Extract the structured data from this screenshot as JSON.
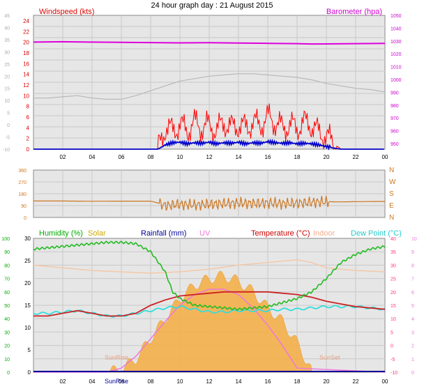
{
  "title": "24 hour graph day : 21 August 2015",
  "colors": {
    "plot_bg": "#e6e6e6",
    "grid": "#c8c8c8",
    "wind_gust": "#ff0000",
    "wind_avg": "#0000cc",
    "barometer": "#dd00dd",
    "temp_dim": "#b8b8b8",
    "wind_dir": "#cc7722",
    "humidity": "#22bb22",
    "solar": "#f5b04a",
    "rainfall": "#000099",
    "uv": "#ee77dd",
    "temperature": "#cc2222",
    "indoor": "#f5c8a8",
    "dewpoint": "#33dddd",
    "temp_axis": "#ff3377",
    "left_green_axis": "#00aa00"
  },
  "chart_data": [
    {
      "type": "line",
      "name": "wind-barometer",
      "labels": {
        "left": "Windspeed (kts)",
        "right": "Barometer (hpa)"
      },
      "x_ticks": [
        "02",
        "04",
        "06",
        "08",
        "10",
        "12",
        "14",
        "16",
        "18",
        "20",
        "22",
        "00"
      ],
      "y_left_ticks": [
        "24",
        "22",
        "20",
        "18",
        "16",
        "14",
        "12",
        "10",
        "8",
        "6",
        "4",
        "2",
        "0"
      ],
      "y_left_ticks_faded": [
        "45",
        "40",
        "35",
        "30",
        "25",
        "20",
        "15",
        "10",
        "5",
        "0",
        "-5",
        "-10"
      ],
      "y_right_ticks": [
        "1050",
        "1040",
        "1030",
        "1020",
        "1010",
        "1000",
        "990",
        "980",
        "970",
        "960",
        "950"
      ],
      "ylim_left": [
        0,
        25
      ],
      "ylim_right": [
        945,
        1050
      ],
      "series": [
        {
          "name": "barometer",
          "x": [
            0,
            2,
            4,
            6,
            8,
            10,
            12,
            14,
            16,
            18,
            19,
            20,
            22,
            24
          ],
          "y": [
            1029,
            1029.3,
            1029,
            1028.8,
            1028.6,
            1028.4,
            1028.5,
            1028.3,
            1028,
            1027.8,
            1027.5,
            1027.6,
            1027.8,
            1028
          ]
        },
        {
          "name": "temperature-faded",
          "x": [
            0,
            1,
            2,
            3,
            4,
            5,
            6,
            7,
            8,
            9,
            10,
            11,
            12,
            13,
            14,
            15,
            16,
            17,
            18,
            19,
            20,
            21,
            22,
            23,
            24
          ],
          "y": [
            11,
            11,
            11.5,
            12,
            11,
            10.5,
            10.5,
            12,
            14,
            16,
            18,
            19,
            20,
            20.5,
            21,
            21,
            20.5,
            20,
            19.5,
            18.5,
            17,
            16,
            15,
            14.5,
            13.5
          ]
        },
        {
          "name": "gust",
          "x": [
            0,
            8.5,
            9,
            9.5,
            10,
            10.5,
            11,
            11.5,
            12,
            12.5,
            13,
            13.5,
            14,
            14.5,
            15,
            15.5,
            16,
            16.5,
            17,
            17.5,
            18,
            18.5,
            19,
            19.5,
            20,
            20.5,
            21,
            22,
            24
          ],
          "y": [
            0,
            0,
            4,
            3.5,
            4.5,
            3.5,
            5,
            4,
            4.5,
            3.5,
            5,
            4,
            4.5,
            4,
            5,
            4.5,
            6,
            5,
            4,
            4.5,
            4,
            5,
            4.5,
            3,
            2.5,
            1,
            0,
            0,
            0
          ]
        },
        {
          "name": "average",
          "x": [
            0,
            8.5,
            9,
            9.5,
            10,
            10.5,
            11,
            11.5,
            12,
            12.5,
            13,
            13.5,
            14,
            14.5,
            15,
            15.5,
            16,
            16.5,
            17,
            17.5,
            18,
            18.5,
            19,
            19.5,
            20,
            20.5,
            21,
            22,
            24
          ],
          "y": [
            0,
            0,
            0.8,
            1.2,
            1.3,
            1,
            1.2,
            1.1,
            1.3,
            1,
            1.2,
            1.1,
            1.3,
            1,
            1.2,
            1.1,
            1.4,
            1.2,
            1.1,
            1.2,
            1,
            1.1,
            1,
            0.8,
            0.5,
            0.2,
            0,
            0,
            0
          ]
        }
      ]
    },
    {
      "type": "line",
      "name": "wind-direction",
      "y_left_ticks": [
        "360",
        "270",
        "180",
        "90",
        "0"
      ],
      "y_right_ticks": [
        "N",
        "W",
        "S",
        "E",
        "N"
      ],
      "ylim": [
        0,
        360
      ],
      "series": [
        {
          "name": "direction",
          "x": [
            0,
            2,
            4,
            6,
            8,
            8.5,
            9,
            10,
            11,
            12,
            13,
            14,
            15,
            16,
            17,
            18,
            19,
            20,
            21,
            22,
            24
          ],
          "y": [
            125,
            125,
            123,
            124,
            124,
            110,
            90,
            100,
            95,
            100,
            105,
            110,
            105,
            110,
            105,
            108,
            115,
            120,
            118,
            120,
            122
          ]
        }
      ]
    },
    {
      "type": "line",
      "name": "temperature-humidity",
      "labels": {
        "humidity": "Humidity (%)",
        "solar": "Solar",
        "rainfall": "Rainfall (mm)",
        "uv": "UV",
        "temperature": "Temperature (°C)",
        "indoor": "Indoor",
        "dewpoint": "Dew Point (°C)",
        "sunrise": "SunRise",
        "sunset": "SunSet"
      },
      "x_ticks": [
        "02",
        "04",
        "06",
        "08",
        "10",
        "12",
        "14",
        "16",
        "18",
        "20",
        "22",
        "00"
      ],
      "y_left_ticks": [
        "100",
        "90",
        "80",
        "70",
        "60",
        "50",
        "40",
        "30",
        "20",
        "10",
        "0"
      ],
      "y_second_ticks": [
        "30",
        "25",
        "20",
        "15",
        "10",
        "5",
        "0"
      ],
      "y_temp_ticks": [
        "40",
        "35",
        "30",
        "25",
        "20",
        "15",
        "10",
        "5",
        "0",
        "-5",
        "-10"
      ],
      "y_uv_ticks": [
        "10",
        "9",
        "8",
        "7",
        "6",
        "5",
        "4",
        "3",
        "2",
        "1",
        "0"
      ],
      "ylim_temp": [
        -10,
        40
      ],
      "series": [
        {
          "name": "humidity",
          "x": [
            0,
            1,
            2,
            3,
            4,
            5,
            6,
            7,
            8,
            9,
            9.5,
            10,
            11,
            12,
            13,
            14,
            15,
            16,
            17,
            18,
            19,
            20,
            21,
            22,
            23,
            24
          ],
          "y": [
            92,
            93,
            94,
            95,
            96,
            97,
            97,
            96,
            90,
            75,
            60,
            55,
            50,
            49,
            48,
            47,
            48,
            49,
            52,
            55,
            60,
            70,
            82,
            88,
            92,
            94
          ]
        },
        {
          "name": "temperature",
          "x": [
            0,
            1,
            2,
            3,
            4,
            5,
            6,
            7,
            8,
            9,
            10,
            11,
            12,
            13,
            14,
            15,
            16,
            17,
            18,
            19,
            20,
            21,
            22,
            23,
            24
          ],
          "y": [
            11,
            11,
            12,
            13,
            12,
            11,
            11,
            12,
            15,
            17,
            18.5,
            19,
            19.5,
            20,
            20,
            20,
            20,
            19.5,
            19,
            18,
            16.5,
            15.5,
            14.5,
            14,
            13.5
          ]
        },
        {
          "name": "dewpoint",
          "x": [
            0,
            1,
            2,
            3,
            4,
            5,
            6,
            7,
            8,
            9,
            10,
            11,
            12,
            13,
            14,
            15,
            16,
            17,
            18,
            19,
            20,
            21,
            22,
            23,
            24
          ],
          "y": [
            12,
            12,
            12.5,
            13,
            12,
            11,
            11,
            12,
            13,
            14,
            14.5,
            13.5,
            12.5,
            12.5,
            13,
            13,
            13,
            13.5,
            13.5,
            14,
            14.5,
            14.5,
            14.5,
            14,
            13.5
          ]
        },
        {
          "name": "indoor",
          "x": [
            0,
            2,
            4,
            6,
            8,
            10,
            12,
            14,
            16,
            18,
            19,
            20,
            22,
            24
          ],
          "y": [
            30,
            29,
            28,
            27.5,
            27,
            27.5,
            28.5,
            30,
            31,
            32,
            31,
            29,
            28,
            27.5
          ]
        },
        {
          "name": "solar",
          "x": [
            0,
            5,
            6,
            7,
            8,
            9,
            10,
            11,
            12,
            13,
            14,
            15,
            16,
            17,
            18,
            18.8,
            19,
            24
          ],
          "y": [
            0,
            0,
            2,
            10,
            25,
            40,
            55,
            65,
            70,
            72,
            68,
            60,
            48,
            38,
            22,
            5,
            0,
            0
          ]
        },
        {
          "name": "uv",
          "x": [
            0,
            5,
            6,
            7,
            8,
            9,
            10,
            11,
            12,
            13,
            14,
            15,
            16,
            17,
            18,
            24
          ],
          "y": [
            0,
            0,
            0.3,
            1.2,
            2.5,
            3.8,
            5,
            5.8,
            6.2,
            6.2,
            5.8,
            4.8,
            3.5,
            2,
            0.3,
            0
          ]
        }
      ]
    }
  ]
}
